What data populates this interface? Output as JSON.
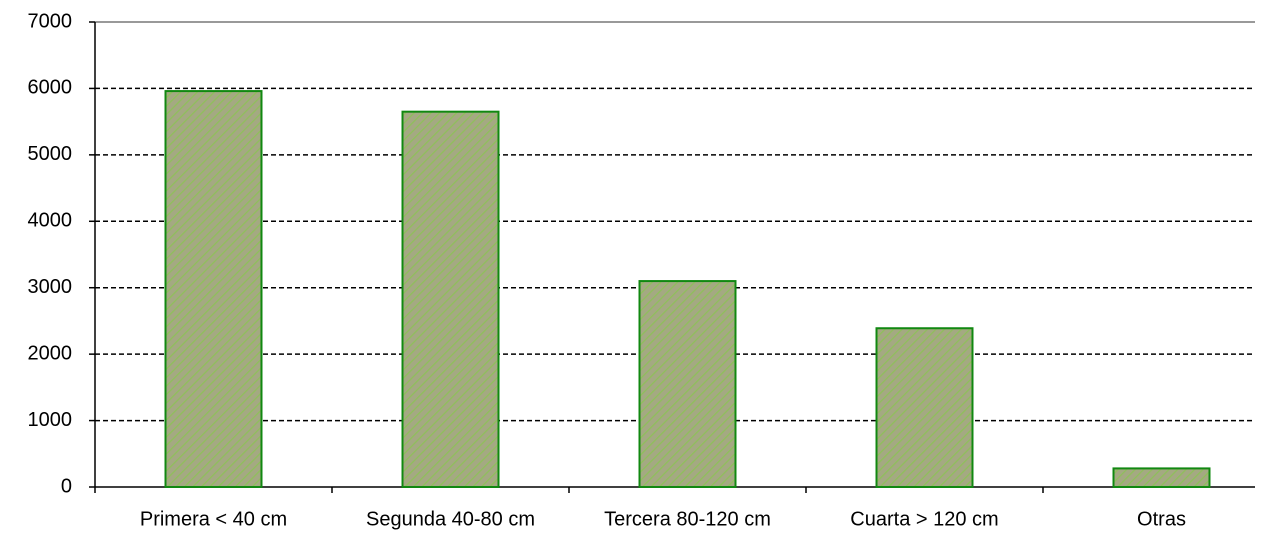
{
  "chart_data": {
    "type": "bar",
    "categories": [
      "Primera < 40 cm",
      "Segunda 40-80 cm",
      "Tercera 80-120 cm",
      "Cuarta > 120 cm",
      "Otras"
    ],
    "values": [
      5960,
      5650,
      3100,
      2390,
      280
    ],
    "color": "#9fb07a",
    "ylim": [
      0,
      7000
    ],
    "yticks": [
      0,
      1000,
      2000,
      3000,
      4000,
      5000,
      6000,
      7000
    ],
    "grid": true
  }
}
